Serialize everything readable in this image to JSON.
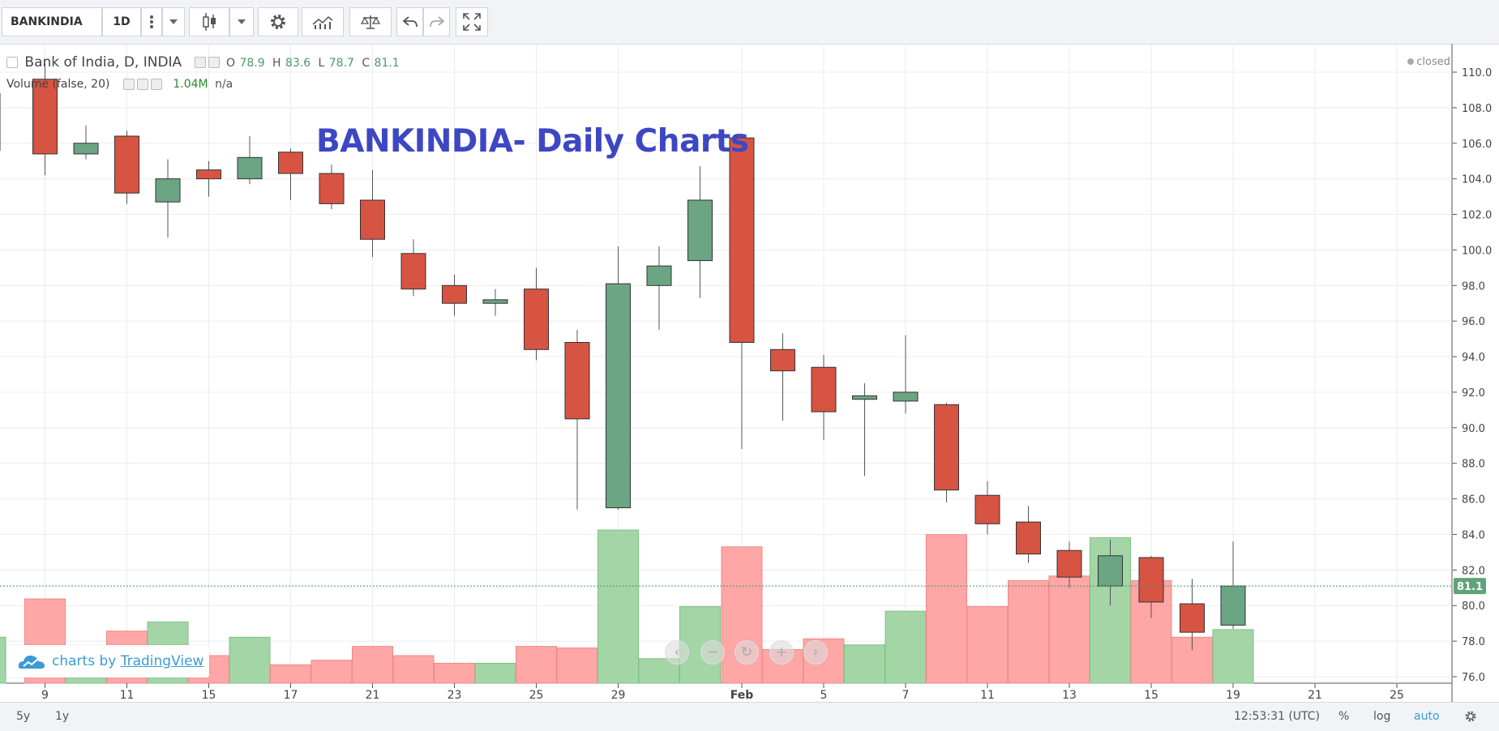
{
  "toolbar": {
    "symbol": "BANKINDIA",
    "interval": "1D"
  },
  "legend": {
    "title": "Bank of India, D, INDIA",
    "o_label": "O",
    "o_value": "78.9",
    "h_label": "H",
    "h_value": "83.6",
    "l_label": "L",
    "l_value": "78.7",
    "c_label": "C",
    "c_value": "81.1",
    "volume_label": "Volume (false, 20)",
    "volume_value": "1.04M",
    "volume_na": "n/a",
    "status": "closed"
  },
  "overlay_title": "BANKINDIA- Daily Charts",
  "logo": {
    "prefix": "charts by",
    "brand": "TradingView"
  },
  "bottom_bar": {
    "range_5y": "5y",
    "range_1y": "1y",
    "time": "12:53:31 (UTC)",
    "percent": "%",
    "log": "log",
    "auto": "auto"
  },
  "colors": {
    "up": "#6ba583",
    "down": "#d75442",
    "vol_up": "#a3d5a6",
    "vol_down": "#ffa6a6",
    "title": "#3d47c4"
  },
  "chart_data": {
    "type": "candlestick",
    "title": "BANKINDIA- Daily Charts",
    "ylim": [
      75.5,
      110.8
    ],
    "y_ticks": [
      "110.0",
      "108.0",
      "106.0",
      "104.0",
      "102.0",
      "100.0",
      "98.0",
      "96.0",
      "94.0",
      "92.0",
      "90.0",
      "88.0",
      "86.0",
      "84.0",
      "82.0",
      "80.0",
      "78.0",
      "76.0"
    ],
    "x_tick_labels": [
      "9",
      "11",
      "15",
      "17",
      "21",
      "23",
      "25",
      "29",
      "Feb",
      "5",
      "7",
      "11",
      "13",
      "15",
      "19",
      "21",
      "25"
    ],
    "last_price_label": "81.1",
    "candles": [
      {
        "o": 105.6,
        "h": 108.8,
        "l": 104.8,
        "c": 108.8
      },
      {
        "o": 109.6,
        "h": 110.5,
        "l": 104.2,
        "c": 105.4
      },
      {
        "o": 105.4,
        "h": 107.0,
        "l": 105.1,
        "c": 106.0
      },
      {
        "o": 106.4,
        "h": 106.7,
        "l": 102.6,
        "c": 103.2
      },
      {
        "o": 102.7,
        "h": 105.1,
        "l": 100.7,
        "c": 104.0
      },
      {
        "o": 104.5,
        "h": 105.0,
        "l": 103.0,
        "c": 104.0
      },
      {
        "o": 104.0,
        "h": 106.4,
        "l": 103.7,
        "c": 105.2
      },
      {
        "o": 105.5,
        "h": 105.7,
        "l": 102.8,
        "c": 104.3
      },
      {
        "o": 104.3,
        "h": 104.8,
        "l": 102.3,
        "c": 102.6
      },
      {
        "o": 102.8,
        "h": 104.5,
        "l": 99.6,
        "c": 100.6
      },
      {
        "o": 99.8,
        "h": 100.6,
        "l": 97.4,
        "c": 97.8
      },
      {
        "o": 98.0,
        "h": 98.6,
        "l": 96.3,
        "c": 97.0
      },
      {
        "o": 97.0,
        "h": 97.8,
        "l": 96.3,
        "c": 97.2
      },
      {
        "o": 97.8,
        "h": 99.0,
        "l": 93.8,
        "c": 94.4
      },
      {
        "o": 94.8,
        "h": 95.5,
        "l": 85.4,
        "c": 90.5
      },
      {
        "o": 85.5,
        "h": 100.2,
        "l": 85.4,
        "c": 98.1
      },
      {
        "o": 98.0,
        "h": 100.2,
        "l": 95.5,
        "c": 99.1
      },
      {
        "o": 99.4,
        "h": 104.7,
        "l": 97.3,
        "c": 102.8
      },
      {
        "o": 106.3,
        "h": 106.5,
        "l": 88.8,
        "c": 94.8
      },
      {
        "o": 94.4,
        "h": 95.3,
        "l": 90.4,
        "c": 93.2
      },
      {
        "o": 93.4,
        "h": 94.1,
        "l": 89.3,
        "c": 90.9
      },
      {
        "o": 91.6,
        "h": 92.5,
        "l": 87.3,
        "c": 91.8
      },
      {
        "o": 91.5,
        "h": 95.2,
        "l": 90.8,
        "c": 92.0
      },
      {
        "o": 91.3,
        "h": 91.4,
        "l": 85.8,
        "c": 86.5
      },
      {
        "o": 86.2,
        "h": 87.0,
        "l": 84.0,
        "c": 84.6
      },
      {
        "o": 84.7,
        "h": 85.6,
        "l": 82.4,
        "c": 82.9
      },
      {
        "o": 83.1,
        "h": 83.6,
        "l": 81.0,
        "c": 81.6
      },
      {
        "o": 81.1,
        "h": 83.7,
        "l": 80.0,
        "c": 82.8
      },
      {
        "o": 82.7,
        "h": 82.8,
        "l": 79.3,
        "c": 80.2
      },
      {
        "o": 80.1,
        "h": 81.5,
        "l": 77.5,
        "c": 78.5
      },
      {
        "o": 78.9,
        "h": 83.6,
        "l": 78.7,
        "c": 81.1
      }
    ],
    "volume": [
      {
        "v": 0.3,
        "up": true
      },
      {
        "v": 0.55,
        "up": false
      },
      {
        "v": 0.12,
        "up": true
      },
      {
        "v": 0.34,
        "up": false
      },
      {
        "v": 0.4,
        "up": true
      },
      {
        "v": 0.18,
        "up": false
      },
      {
        "v": 0.3,
        "up": true
      },
      {
        "v": 0.12,
        "up": false
      },
      {
        "v": 0.15,
        "up": false
      },
      {
        "v": 0.24,
        "up": false
      },
      {
        "v": 0.18,
        "up": false
      },
      {
        "v": 0.13,
        "up": false
      },
      {
        "v": 0.13,
        "up": true
      },
      {
        "v": 0.24,
        "up": false
      },
      {
        "v": 0.23,
        "up": false
      },
      {
        "v": 1.0,
        "up": true
      },
      {
        "v": 0.16,
        "up": true
      },
      {
        "v": 0.5,
        "up": true
      },
      {
        "v": 0.89,
        "up": false
      },
      {
        "v": 0.22,
        "up": false
      },
      {
        "v": 0.29,
        "up": false
      },
      {
        "v": 0.25,
        "up": true
      },
      {
        "v": 0.47,
        "up": true
      },
      {
        "v": 0.97,
        "up": false
      },
      {
        "v": 0.5,
        "up": false
      },
      {
        "v": 0.67,
        "up": false
      },
      {
        "v": 0.7,
        "up": false
      },
      {
        "v": 0.95,
        "up": true
      },
      {
        "v": 0.67,
        "up": false
      },
      {
        "v": 0.3,
        "up": false
      },
      {
        "v": 0.35,
        "up": true
      }
    ]
  }
}
